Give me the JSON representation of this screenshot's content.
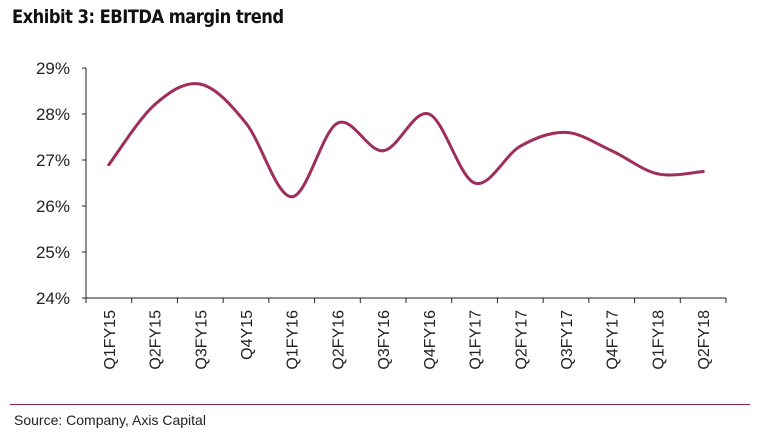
{
  "header": {
    "title": "Exhibit 3: EBITDA margin trend"
  },
  "footer": {
    "source": "Source: Company, Axis Capital"
  },
  "chart_data": {
    "type": "line",
    "title": "Exhibit 3: EBITDA margin trend",
    "xlabel": "",
    "ylabel": "",
    "categories": [
      "Q1FY15",
      "Q2FY15",
      "Q3FY15",
      "Q4Y15",
      "Q1FY16",
      "Q2FY16",
      "Q3FY16",
      "Q4FY16",
      "Q1FY17",
      "Q2FY17",
      "Q3FY17",
      "Q4FY17",
      "Q1FY18",
      "Q2FY18"
    ],
    "series": [
      {
        "values": [
          26.9,
          28.2,
          28.65,
          27.8,
          26.2,
          27.8,
          27.2,
          28.0,
          26.5,
          27.3,
          27.6,
          27.2,
          26.7,
          26.75
        ]
      }
    ],
    "ylim": [
      24,
      29
    ],
    "yticks": [
      24,
      25,
      26,
      27,
      28,
      29
    ],
    "ytick_labels": [
      "24%",
      "25%",
      "26%",
      "27%",
      "28%",
      "29%"
    ],
    "grid": false,
    "legend": "none",
    "line_color": "#9e2f5c",
    "smooth": true
  }
}
